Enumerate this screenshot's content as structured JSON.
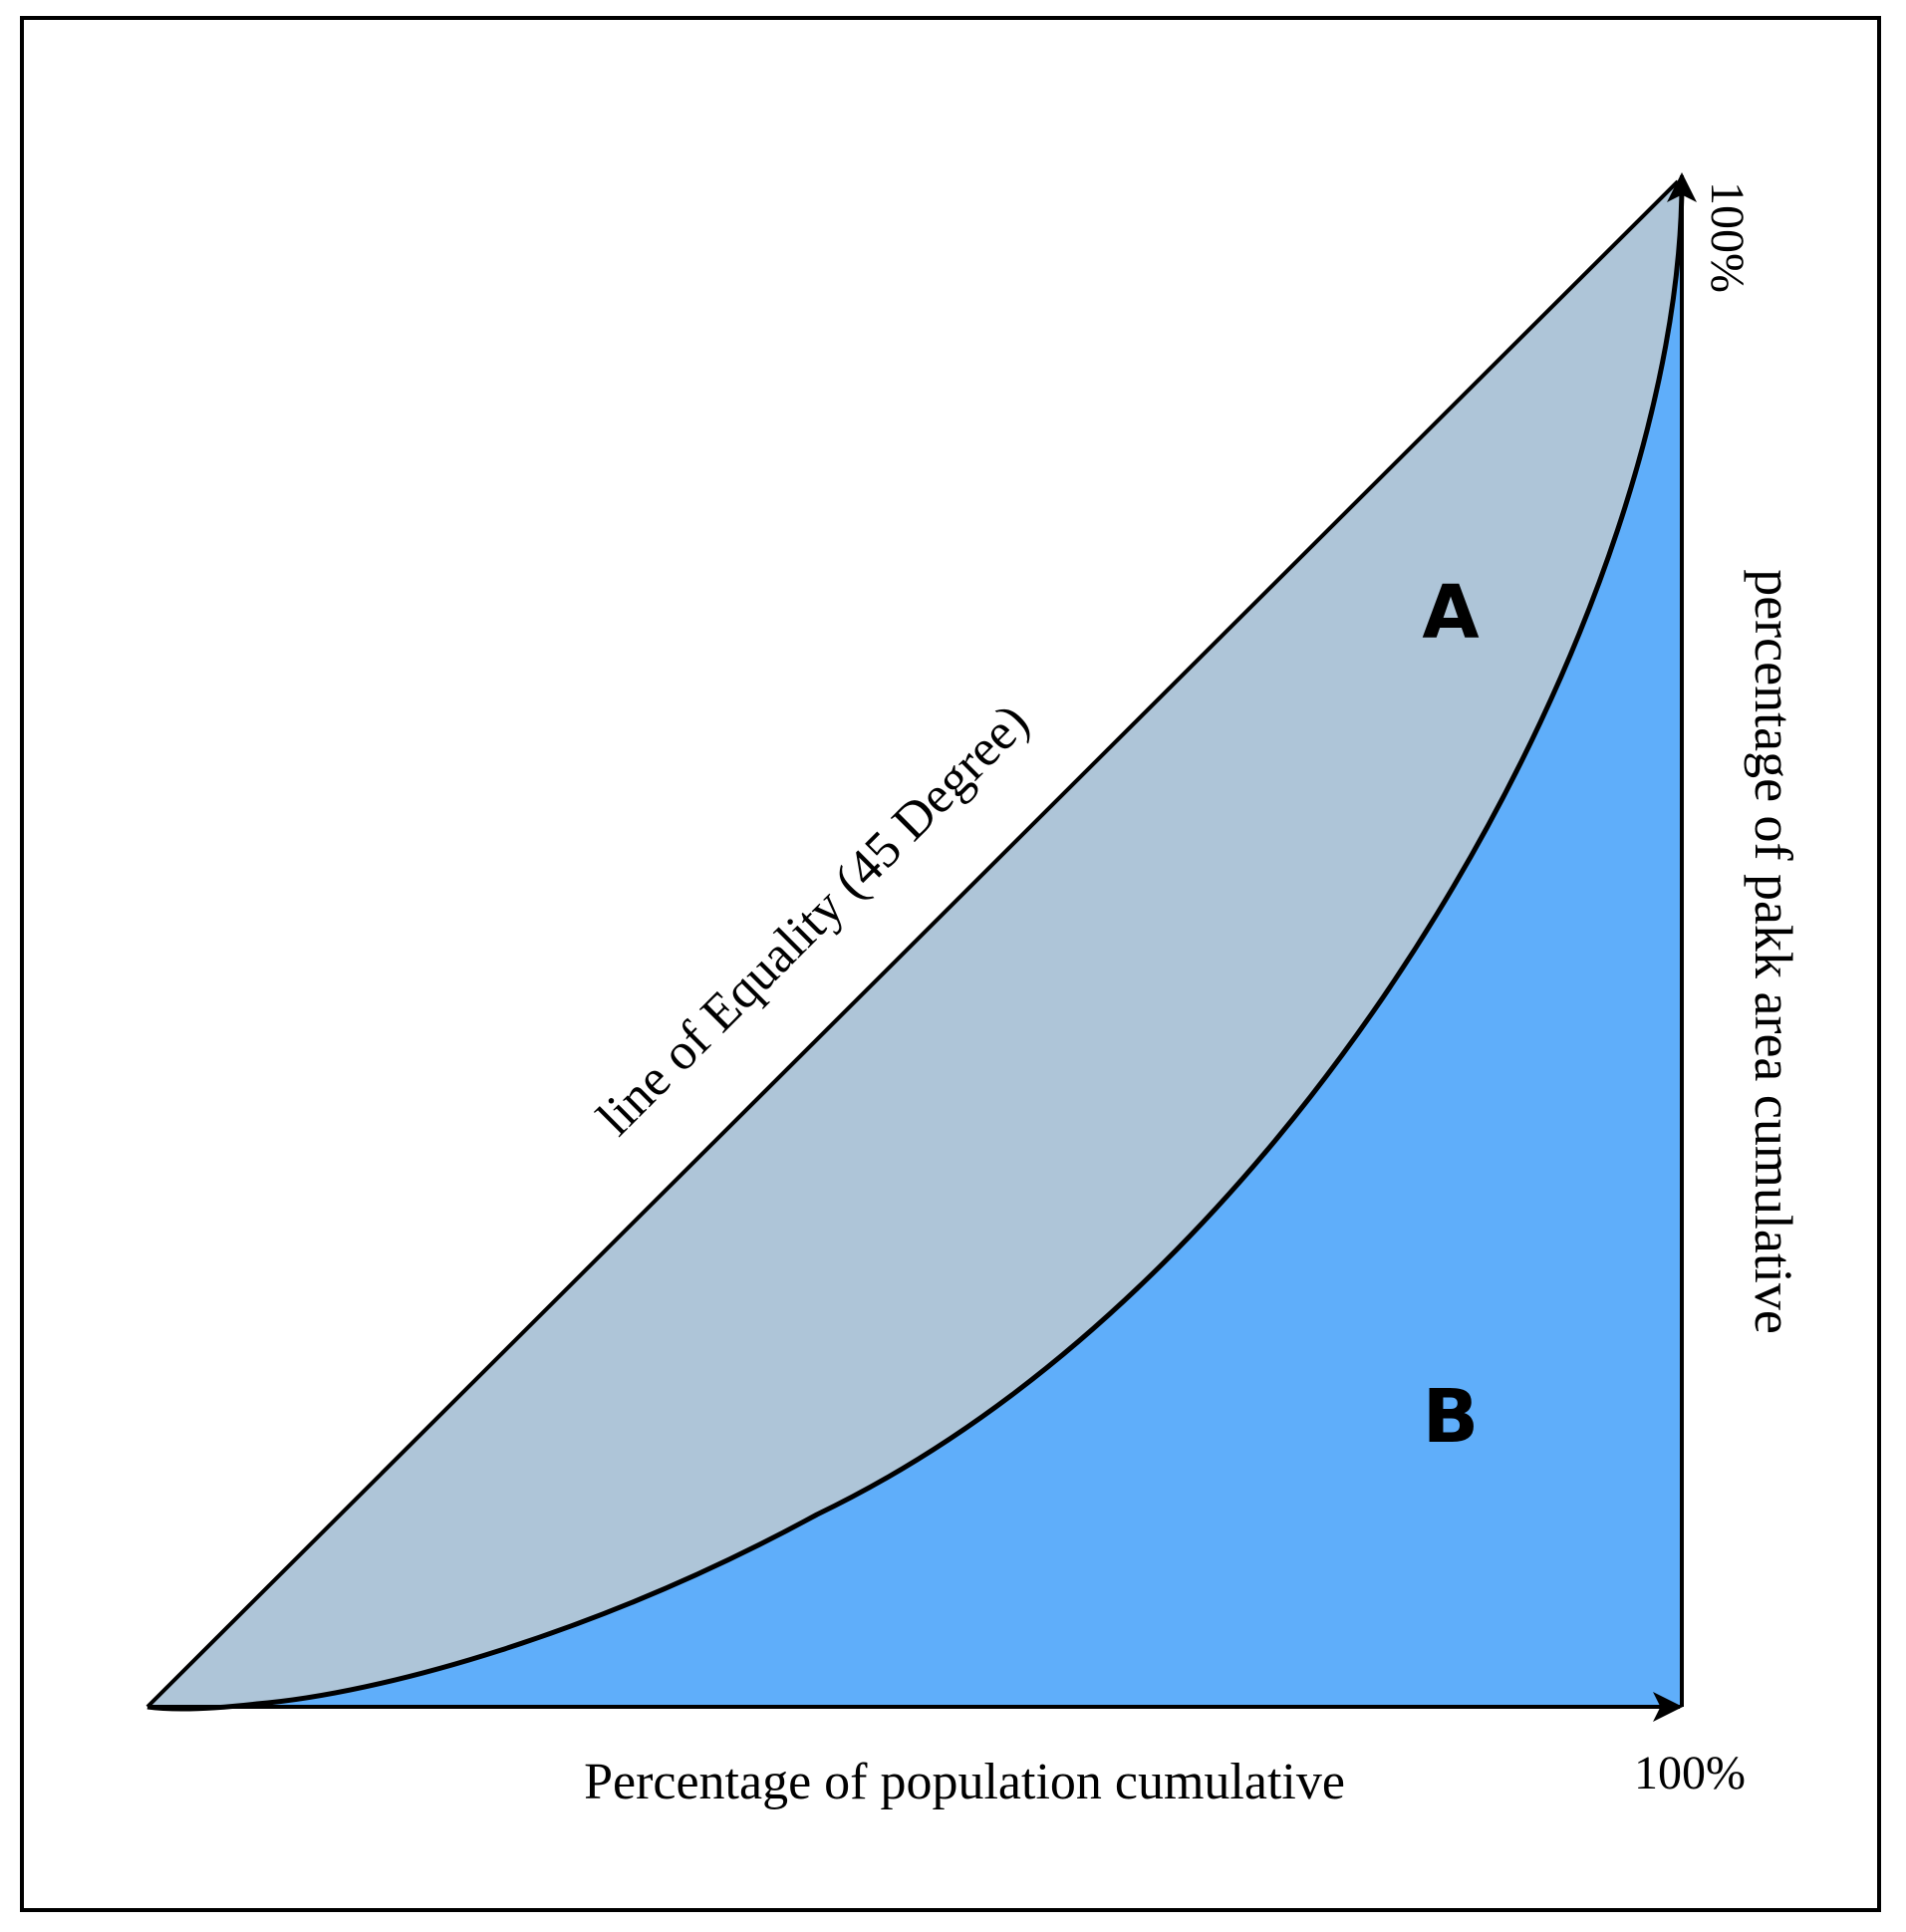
{
  "diagram": {
    "equality_line_label": "line of Equality (45 Degree)",
    "x_axis_label": "Percentage of population cumulative",
    "x_axis_end_label": "100%",
    "y_axis_label": "percentage of pakk area cumulative",
    "y_axis_end_label": "100%",
    "region_a_label": "A",
    "region_b_label": "B",
    "colors": {
      "region_a": "#aec5d8",
      "region_b": "#5faefa",
      "lines": "#000000",
      "frame": "#000000"
    }
  }
}
